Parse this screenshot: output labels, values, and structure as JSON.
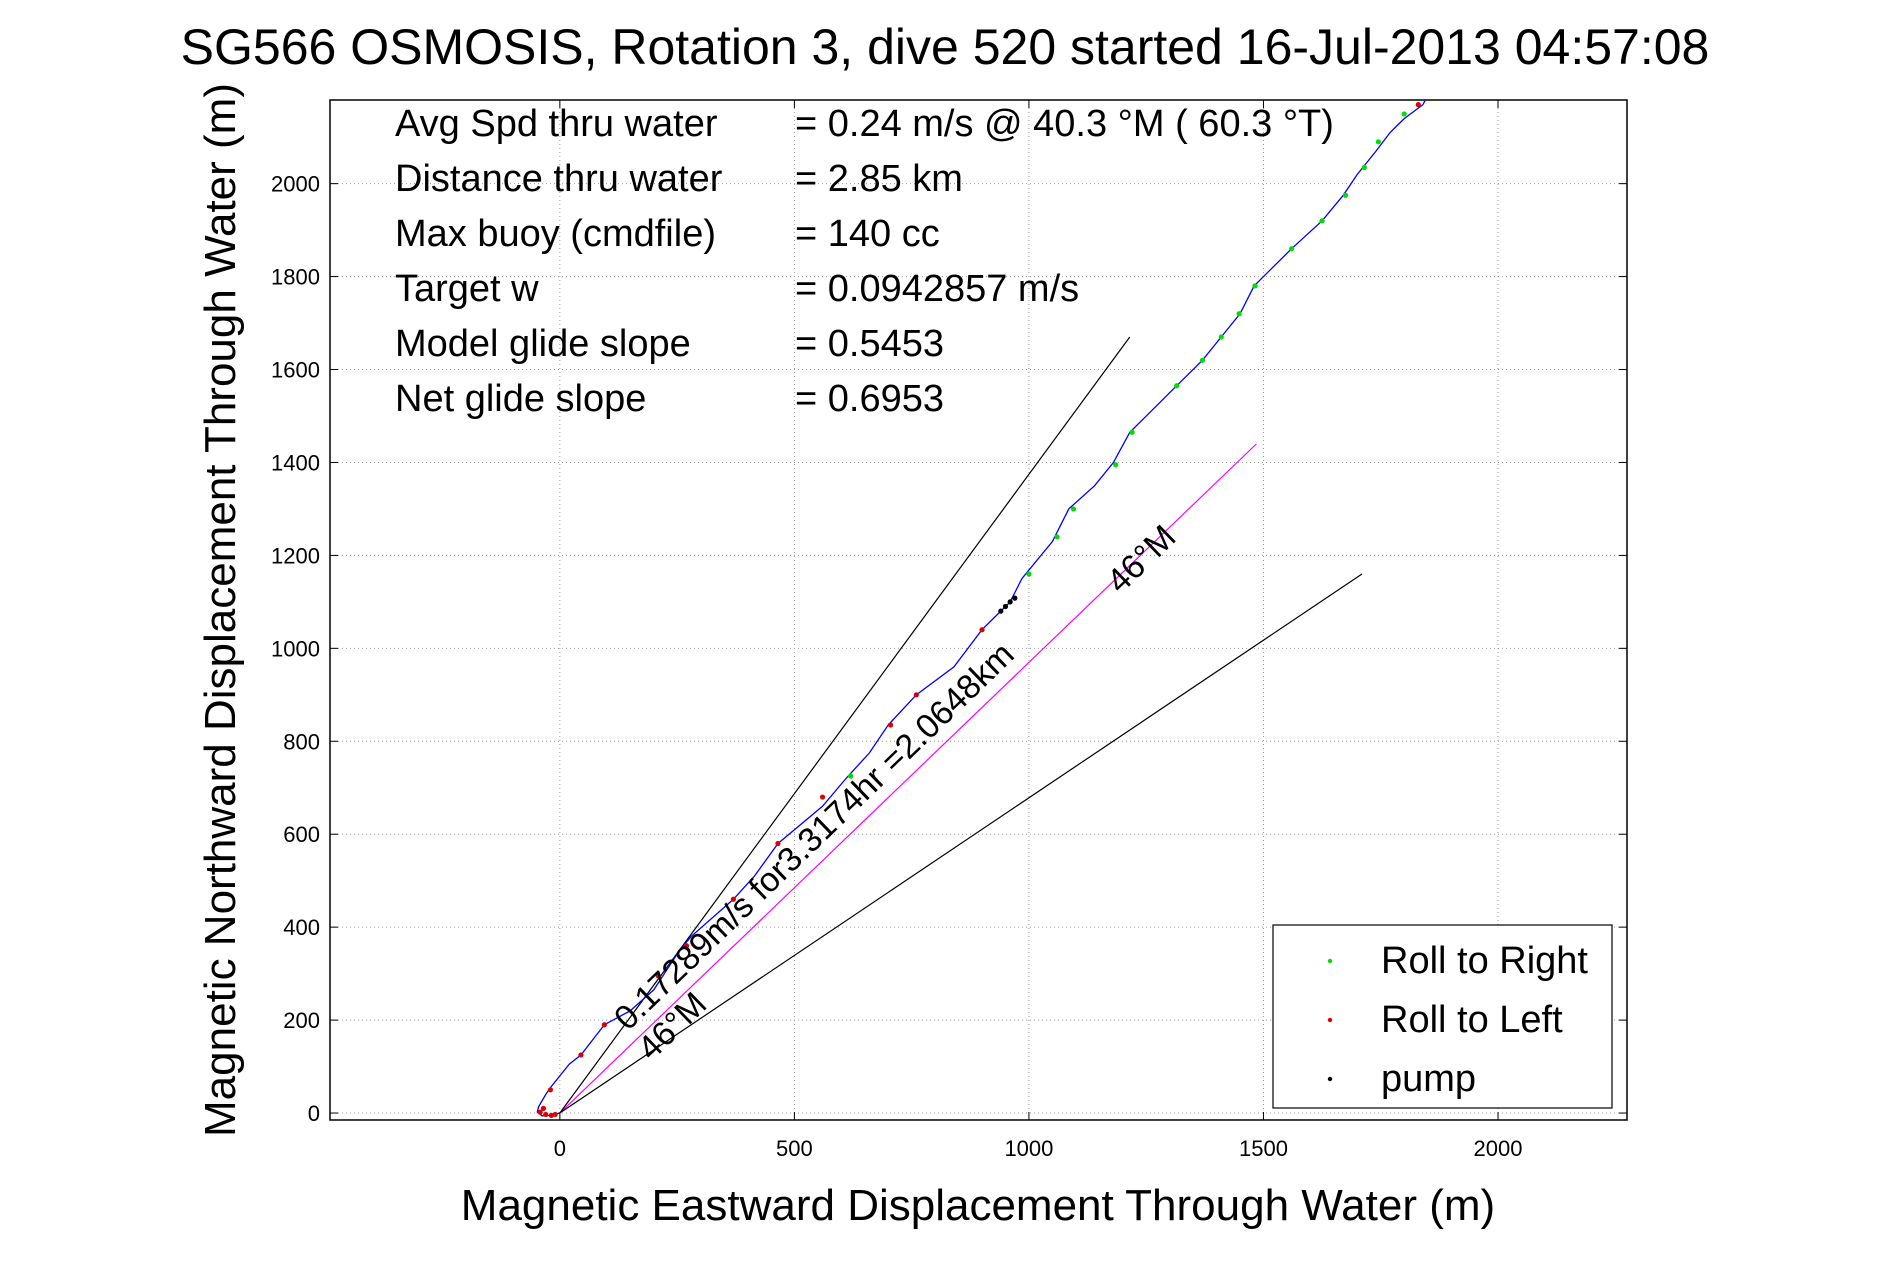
{
  "chart_data": {
    "type": "scatter",
    "title": "SG566 OSMOSIS, Rotation 3, dive 520 started 16-Jul-2013 04:57:08",
    "xlabel": "Magnetic Eastward Displacement Through Water (m)",
    "ylabel": "Magnetic Northward Displacement Through Water (m)",
    "xlim": [
      -490,
      2275
    ],
    "ylim": [
      -15,
      2180
    ],
    "xticks": [
      0,
      500,
      1000,
      1500,
      2000
    ],
    "yticks": [
      0,
      200,
      400,
      600,
      800,
      1000,
      1200,
      1400,
      1600,
      1800,
      2000
    ],
    "xtick_labels": [
      "0",
      "500",
      "1000",
      "1500",
      "2000"
    ],
    "ytick_labels": [
      "0",
      "200",
      "400",
      "600",
      "800",
      "1000",
      "1200",
      "1400",
      "1600",
      "1800",
      "2000"
    ],
    "grid": true,
    "info": [
      {
        "label": "Avg Spd thru water",
        "value": "=  0.24 m/s @  40.3 °M ( 60.3 °T)"
      },
      {
        "label": "Distance thru water",
        "value": "=  2.85 km"
      },
      {
        "label": "Max buoy (cmdfile)",
        "value": "= 140 cc"
      },
      {
        "label": "Target w",
        "value": "= 0.0942857 m/s"
      },
      {
        "label": "Model glide slope",
        "value": "= 0.5453"
      },
      {
        "label": "Net glide slope",
        "value": "= 0.6953"
      }
    ],
    "annotations": [
      {
        "text": "0.17289m/s for3.3174hr =2.0648km",
        "x": 145,
        "y": 175,
        "angle_deg": 44
      },
      {
        "text": "46°M",
        "x": 195,
        "y": 110,
        "angle_deg": 44
      },
      {
        "text": "46°M",
        "x": 1195,
        "y": 1115,
        "angle_deg": 44
      }
    ],
    "reference_lines": [
      {
        "name": "heading-line",
        "color": "#ff00ff",
        "points": [
          [
            0,
            0
          ],
          [
            1485,
            1440
          ]
        ]
      },
      {
        "name": "cone-upper",
        "color": "#000000",
        "points": [
          [
            0,
            0
          ],
          [
            1215,
            1670
          ]
        ]
      },
      {
        "name": "cone-lower",
        "color": "#000000",
        "points": [
          [
            0,
            0
          ],
          [
            1710,
            1160
          ]
        ]
      }
    ],
    "track": {
      "name": "glider-track",
      "color": "#0000ff",
      "points": [
        [
          0,
          0
        ],
        [
          -18,
          -5
        ],
        [
          -38,
          -6
        ],
        [
          -48,
          2
        ],
        [
          -45,
          14
        ],
        [
          -30,
          40
        ],
        [
          -20,
          55
        ],
        [
          20,
          105
        ],
        [
          45,
          125
        ],
        [
          95,
          190
        ],
        [
          150,
          220
        ],
        [
          200,
          265
        ],
        [
          255,
          350
        ],
        [
          280,
          380
        ],
        [
          370,
          460
        ],
        [
          415,
          510
        ],
        [
          465,
          580
        ],
        [
          560,
          660
        ],
        [
          610,
          720
        ],
        [
          660,
          775
        ],
        [
          700,
          835
        ],
        [
          760,
          900
        ],
        [
          840,
          960
        ],
        [
          900,
          1040
        ],
        [
          935,
          1075
        ],
        [
          960,
          1100
        ],
        [
          985,
          1150
        ],
        [
          1050,
          1230
        ],
        [
          1085,
          1300
        ],
        [
          1140,
          1350
        ],
        [
          1180,
          1400
        ],
        [
          1215,
          1465
        ],
        [
          1280,
          1530
        ],
        [
          1310,
          1560
        ],
        [
          1370,
          1620
        ],
        [
          1410,
          1670
        ],
        [
          1450,
          1720
        ],
        [
          1480,
          1780
        ],
        [
          1560,
          1860
        ],
        [
          1625,
          1920
        ],
        [
          1670,
          1975
        ],
        [
          1700,
          2020
        ],
        [
          1740,
          2070
        ],
        [
          1770,
          2110
        ],
        [
          1800,
          2140
        ],
        [
          1840,
          2170
        ],
        [
          1845,
          2180
        ]
      ]
    },
    "series": [
      {
        "name": "Roll to Right",
        "color": "#00dd00",
        "points": [
          [
            620,
            725
          ],
          [
            1000,
            1160
          ],
          [
            1060,
            1240
          ],
          [
            1095,
            1300
          ],
          [
            1185,
            1395
          ],
          [
            1220,
            1465
          ],
          [
            1315,
            1565
          ],
          [
            1370,
            1620
          ],
          [
            1410,
            1670
          ],
          [
            1448,
            1720
          ],
          [
            1482,
            1780
          ],
          [
            1560,
            1860
          ],
          [
            1625,
            1920
          ],
          [
            1675,
            1975
          ],
          [
            1715,
            2035
          ],
          [
            1745,
            2090
          ],
          [
            1800,
            2150
          ]
        ]
      },
      {
        "name": "Roll to Left",
        "color": "#dd0000",
        "points": [
          [
            -42,
            2
          ],
          [
            -35,
            10
          ],
          [
            -30,
            -3
          ],
          [
            -18,
            -5
          ],
          [
            -10,
            -3
          ],
          [
            -20,
            50
          ],
          [
            45,
            125
          ],
          [
            95,
            190
          ],
          [
            210,
            295
          ],
          [
            270,
            360
          ],
          [
            370,
            460
          ],
          [
            465,
            580
          ],
          [
            560,
            680
          ],
          [
            705,
            835
          ],
          [
            760,
            900
          ],
          [
            900,
            1040
          ],
          [
            1830,
            2170
          ]
        ]
      },
      {
        "name": "pump",
        "color": "#000000",
        "points": [
          [
            940,
            1080
          ],
          [
            950,
            1090
          ],
          [
            960,
            1100
          ],
          [
            970,
            1108
          ]
        ]
      }
    ],
    "legend": {
      "placement": "bottom-right",
      "entries": [
        {
          "label": "Roll to Right",
          "color": "#00dd00"
        },
        {
          "label": "Roll to Left",
          "color": "#dd0000"
        },
        {
          "label": "pump",
          "color": "#000000"
        }
      ]
    }
  }
}
